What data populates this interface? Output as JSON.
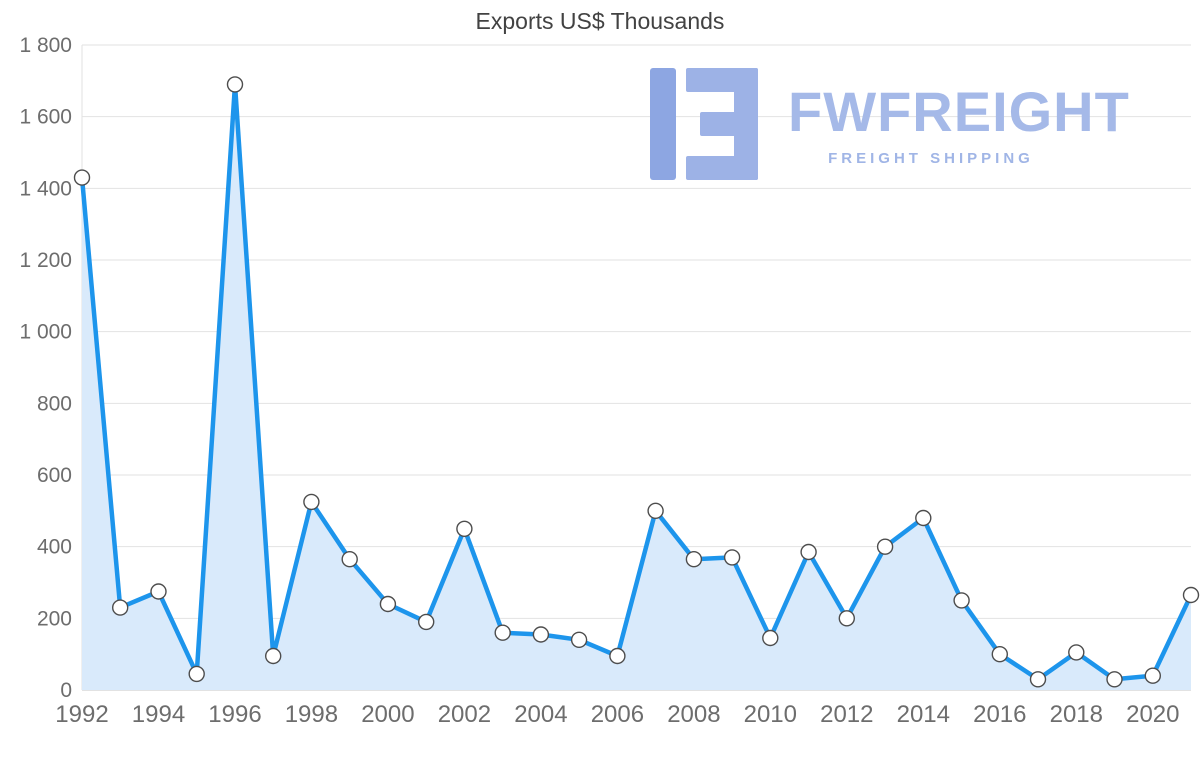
{
  "title": "Exports US$ Thousands",
  "logo": {
    "name": "FWFREIGHT",
    "tagline": "FREIGHT SHIPPING",
    "color": "#a5b9e8"
  },
  "chart_data": {
    "type": "area",
    "title": "Exports US$ Thousands",
    "x": [
      1992,
      1993,
      1994,
      1995,
      1996,
      1997,
      1998,
      1999,
      2000,
      2001,
      2002,
      2003,
      2004,
      2005,
      2006,
      2007,
      2008,
      2009,
      2010,
      2011,
      2012,
      2013,
      2014,
      2015,
      2016,
      2017,
      2018,
      2019,
      2020,
      2021
    ],
    "values": [
      1430,
      230,
      275,
      45,
      1690,
      95,
      525,
      365,
      240,
      190,
      450,
      160,
      155,
      140,
      95,
      500,
      365,
      370,
      145,
      385,
      200,
      400,
      480,
      250,
      100,
      30,
      105,
      30,
      40,
      265
    ],
    "xlabel": "",
    "ylabel": "",
    "ylim": [
      0,
      1800
    ],
    "yticks": [
      0,
      200,
      400,
      600,
      800,
      1000,
      1200,
      1400,
      1600,
      1800
    ],
    "ytick_labels": [
      "0",
      "200",
      "400",
      "600",
      "800",
      "1 000",
      "1 200",
      "1 400",
      "1 600",
      "1 800"
    ],
    "xtick_labels": [
      "1992",
      "1994",
      "1996",
      "1998",
      "2000",
      "2002",
      "2004",
      "2006",
      "2008",
      "2010",
      "2012",
      "2014",
      "2016",
      "2018",
      "2020"
    ],
    "grid": "horizontal",
    "legend": "none",
    "line_color": "#1d95ec",
    "fill_color": "#d9eafb",
    "grid_color": "#e2e2e2",
    "axis_text_color": "#6d6d6d",
    "marker": "white-circle-gray-stroke"
  }
}
